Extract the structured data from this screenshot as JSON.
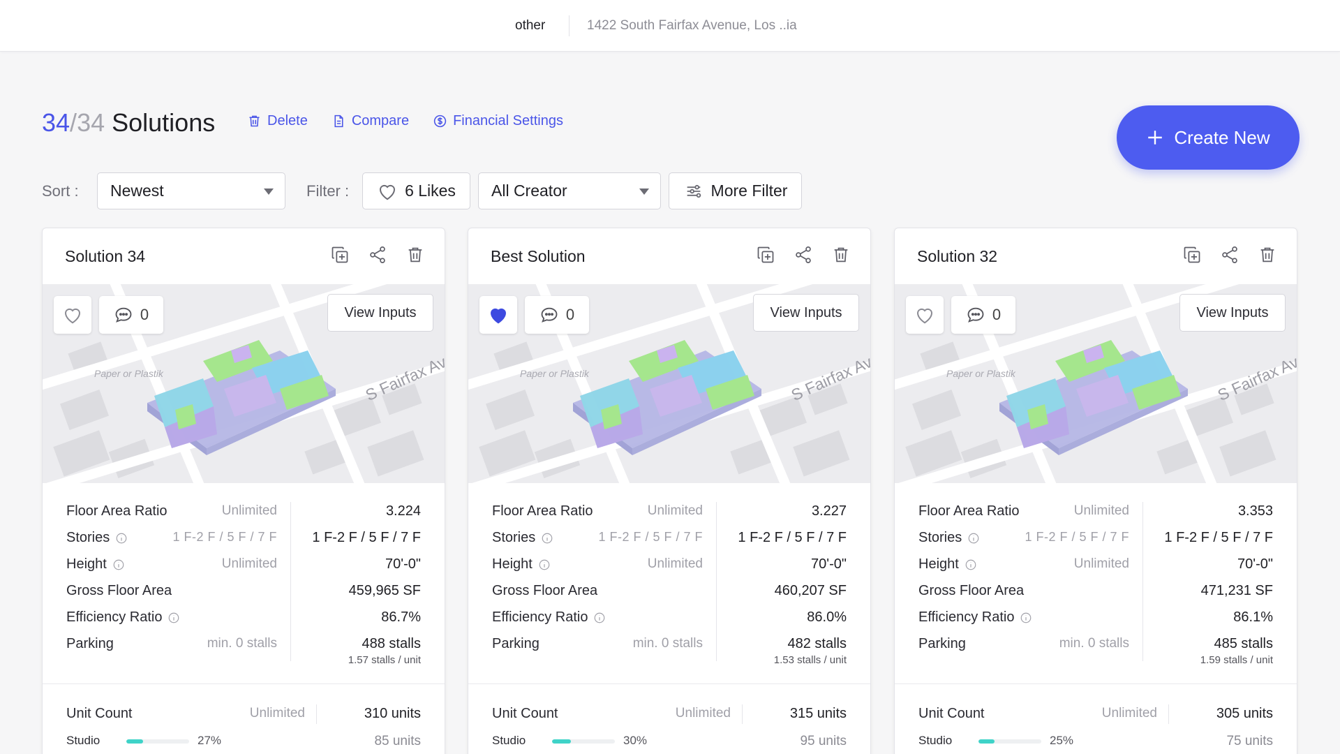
{
  "topbar": {
    "project": "other",
    "address": "1422 South Fairfax Avenue, Los ..ia"
  },
  "header": {
    "count": "34",
    "total": "34",
    "title": "Solutions",
    "actions": {
      "delete": "Delete",
      "compare": "Compare",
      "financial": "Financial Settings"
    },
    "create_label": "Create New"
  },
  "controls": {
    "sort_label": "Sort :",
    "sort_value": "Newest",
    "filter_label": "Filter :",
    "likes_label": "6 Likes",
    "creator_value": "All Creator",
    "more_filter_label": "More Filter"
  },
  "map_labels": {
    "street": "S Fairfax Av",
    "park": "Paper or Plastik"
  },
  "colors": {
    "accent": "#4d5cf0",
    "liked": "#3d4ae0",
    "studio_bar": "#3fd3c8"
  },
  "metric_labels": {
    "far": "Floor Area Ratio",
    "stories": "Stories",
    "height": "Height",
    "gfa": "Gross Floor Area",
    "eff": "Efficiency Ratio",
    "parking": "Parking",
    "unit_count": "Unit Count",
    "studio": "Studio",
    "view_inputs": "View Inputs"
  },
  "requirements": {
    "far": "Unlimited",
    "stories": "1 F-2 F / 5 F / 7 F",
    "height": "Unlimited",
    "parking": "min. 0 stalls",
    "unit_count": "Unlimited"
  },
  "cards": [
    {
      "title": "Solution 34",
      "liked": false,
      "comments": "0",
      "far": "3.224",
      "stories": "1 F-2 F / 5 F / 7 F",
      "height": "70'-0\"",
      "gfa": "459,965 SF",
      "eff": "86.7%",
      "parking": "488 stalls",
      "parking_sub": "1.57 stalls / unit",
      "units": "310 units",
      "studio_pct": "27%",
      "studio_fraction": 0.27,
      "studio_units": "85 units"
    },
    {
      "title": "Best Solution",
      "liked": true,
      "comments": "0",
      "far": "3.227",
      "stories": "1 F-2 F / 5 F / 7 F",
      "height": "70'-0\"",
      "gfa": "460,207 SF",
      "eff": "86.0%",
      "parking": "482 stalls",
      "parking_sub": "1.53 stalls / unit",
      "units": "315 units",
      "studio_pct": "30%",
      "studio_fraction": 0.3,
      "studio_units": "95 units"
    },
    {
      "title": "Solution 32",
      "liked": false,
      "comments": "0",
      "far": "3.353",
      "stories": "1 F-2 F / 5 F / 7 F",
      "height": "70'-0\"",
      "gfa": "471,231 SF",
      "eff": "86.1%",
      "parking": "485 stalls",
      "parking_sub": "1.59 stalls / unit",
      "units": "305 units",
      "studio_pct": "25%",
      "studio_fraction": 0.25,
      "studio_units": "75 units"
    }
  ]
}
